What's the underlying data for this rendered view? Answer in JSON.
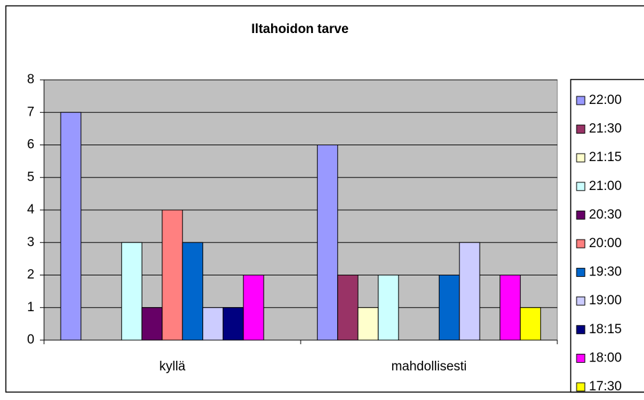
{
  "chart_data": {
    "type": "bar",
    "title": "Iltahoidon tarve",
    "categories": [
      "kyllä",
      "mahdollisesti"
    ],
    "series": [
      {
        "name": "22:00",
        "color": "#9999FF",
        "values": [
          7,
          6
        ]
      },
      {
        "name": "21:30",
        "color": "#993366",
        "values": [
          0,
          2
        ]
      },
      {
        "name": "21:15",
        "color": "#FFFFCC",
        "values": [
          0,
          1
        ]
      },
      {
        "name": "21:00",
        "color": "#CCFFFF",
        "values": [
          3,
          2
        ]
      },
      {
        "name": "20:30",
        "color": "#660066",
        "values": [
          1,
          0
        ]
      },
      {
        "name": "20:00",
        "color": "#FF8080",
        "values": [
          4,
          0
        ]
      },
      {
        "name": "19:30",
        "color": "#0066CC",
        "values": [
          3,
          2
        ]
      },
      {
        "name": "19:00",
        "color": "#CCCCFF",
        "values": [
          1,
          3
        ]
      },
      {
        "name": "18:15",
        "color": "#000080",
        "values": [
          1,
          0
        ]
      },
      {
        "name": "18:00",
        "color": "#FF00FF",
        "values": [
          2,
          2
        ]
      },
      {
        "name": "17:30",
        "color": "#FFFF00",
        "values": [
          0,
          1
        ]
      }
    ],
    "ylim": [
      0,
      8
    ],
    "yticks": [
      0,
      1,
      2,
      3,
      4,
      5,
      6,
      7,
      8
    ],
    "grid": true,
    "legend": "right"
  }
}
